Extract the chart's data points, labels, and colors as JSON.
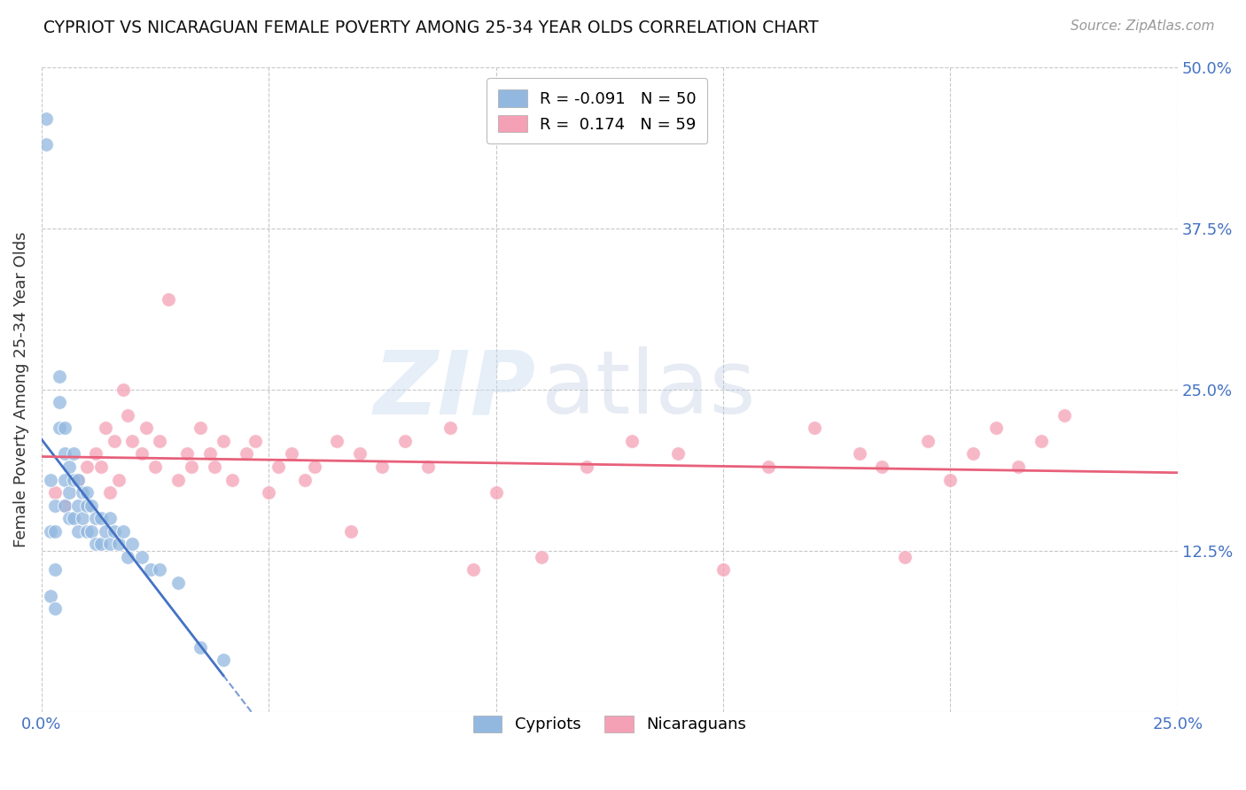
{
  "title": "CYPRIOT VS NICARAGUAN FEMALE POVERTY AMONG 25-34 YEAR OLDS CORRELATION CHART",
  "source": "Source: ZipAtlas.com",
  "ylabel": "Female Poverty Among 25-34 Year Olds",
  "x_min": 0.0,
  "x_max": 0.25,
  "y_min": 0.0,
  "y_max": 0.5,
  "x_ticks": [
    0.0,
    0.05,
    0.1,
    0.15,
    0.2,
    0.25
  ],
  "y_ticks": [
    0.0,
    0.125,
    0.25,
    0.375,
    0.5
  ],
  "y_tick_labels": [
    "",
    "12.5%",
    "25.0%",
    "37.5%",
    "50.0%"
  ],
  "cypriot_color": "#92b8e0",
  "nicaraguan_color": "#f4a0b5",
  "cypriot_line_color": "#4472c4",
  "nicaraguan_line_color": "#e8607a",
  "background_color": "#ffffff",
  "grid_color": "#c8c8c8",
  "watermark_text": "ZIPatlas",
  "cypriot_R": -0.091,
  "cypriot_N": 50,
  "nicaraguan_R": 0.174,
  "nicaraguan_N": 59,
  "cypriot_x": [
    0.001,
    0.001,
    0.002,
    0.002,
    0.002,
    0.003,
    0.003,
    0.003,
    0.003,
    0.004,
    0.004,
    0.004,
    0.005,
    0.005,
    0.005,
    0.005,
    0.006,
    0.006,
    0.006,
    0.007,
    0.007,
    0.007,
    0.008,
    0.008,
    0.008,
    0.009,
    0.009,
    0.01,
    0.01,
    0.01,
    0.011,
    0.011,
    0.012,
    0.012,
    0.013,
    0.013,
    0.014,
    0.015,
    0.015,
    0.016,
    0.017,
    0.018,
    0.019,
    0.02,
    0.022,
    0.024,
    0.026,
    0.03,
    0.035,
    0.04
  ],
  "cypriot_y": [
    0.44,
    0.46,
    0.18,
    0.14,
    0.09,
    0.16,
    0.14,
    0.11,
    0.08,
    0.26,
    0.24,
    0.22,
    0.22,
    0.2,
    0.18,
    0.16,
    0.19,
    0.17,
    0.15,
    0.2,
    0.18,
    0.15,
    0.18,
    0.16,
    0.14,
    0.17,
    0.15,
    0.17,
    0.16,
    0.14,
    0.16,
    0.14,
    0.15,
    0.13,
    0.15,
    0.13,
    0.14,
    0.15,
    0.13,
    0.14,
    0.13,
    0.14,
    0.12,
    0.13,
    0.12,
    0.11,
    0.11,
    0.1,
    0.05,
    0.04
  ],
  "nicaraguan_x": [
    0.003,
    0.005,
    0.008,
    0.01,
    0.012,
    0.013,
    0.014,
    0.015,
    0.016,
    0.017,
    0.018,
    0.019,
    0.02,
    0.022,
    0.023,
    0.025,
    0.026,
    0.028,
    0.03,
    0.032,
    0.033,
    0.035,
    0.037,
    0.038,
    0.04,
    0.042,
    0.045,
    0.047,
    0.05,
    0.052,
    0.055,
    0.058,
    0.06,
    0.065,
    0.068,
    0.07,
    0.075,
    0.08,
    0.085,
    0.09,
    0.095,
    0.1,
    0.11,
    0.12,
    0.13,
    0.14,
    0.15,
    0.16,
    0.17,
    0.18,
    0.185,
    0.19,
    0.195,
    0.2,
    0.205,
    0.21,
    0.215,
    0.22,
    0.225
  ],
  "nicaraguan_y": [
    0.17,
    0.16,
    0.18,
    0.19,
    0.2,
    0.19,
    0.22,
    0.17,
    0.21,
    0.18,
    0.25,
    0.23,
    0.21,
    0.2,
    0.22,
    0.19,
    0.21,
    0.32,
    0.18,
    0.2,
    0.19,
    0.22,
    0.2,
    0.19,
    0.21,
    0.18,
    0.2,
    0.21,
    0.17,
    0.19,
    0.2,
    0.18,
    0.19,
    0.21,
    0.14,
    0.2,
    0.19,
    0.21,
    0.19,
    0.22,
    0.11,
    0.17,
    0.12,
    0.19,
    0.21,
    0.2,
    0.11,
    0.19,
    0.22,
    0.2,
    0.19,
    0.12,
    0.21,
    0.18,
    0.2,
    0.22,
    0.19,
    0.21,
    0.23
  ]
}
